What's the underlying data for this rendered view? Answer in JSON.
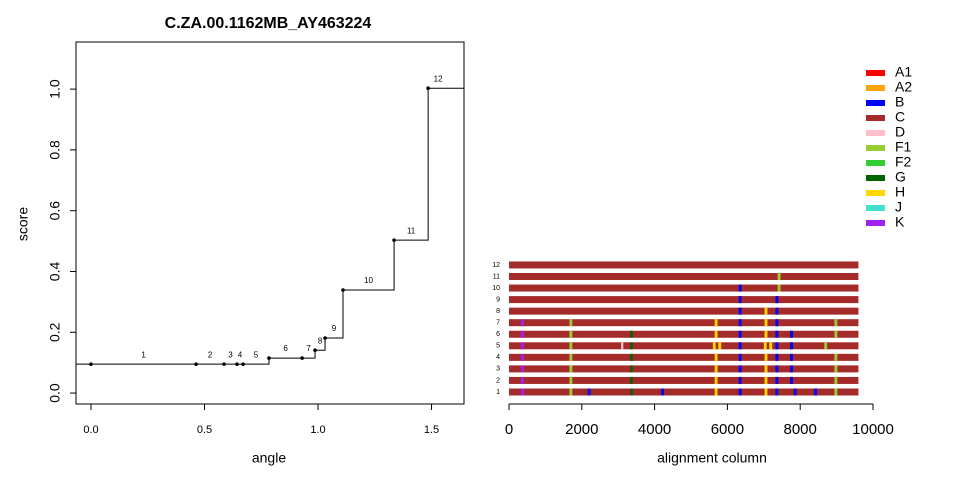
{
  "chart_data": [
    {
      "type": "step",
      "title": "C.ZA.00.1162MB_AY463224",
      "x_label": "angle",
      "y_label": "score",
      "x": [
        0,
        0.463,
        0.586,
        0.643,
        0.67,
        0.784,
        0.93,
        0.987,
        1.031,
        1.11,
        1.335,
        1.485
      ],
      "values": [
        0.095,
        0.095,
        0.095,
        0.095,
        0.095,
        0.115,
        0.115,
        0.141,
        0.181,
        0.339,
        0.503,
        1.003
      ],
      "point_labels": [
        "1",
        "2",
        "3",
        "4",
        "5",
        "6",
        "7",
        "8",
        "9",
        "10",
        "11",
        "12"
      ],
      "color": "#000000",
      "xlim": [
        -0.066,
        1.643
      ],
      "xticks": [
        {
          "value": 0,
          "label": "0.0"
        },
        {
          "value": 0.5,
          "label": "0.5"
        },
        {
          "value": 1,
          "label": "1.0"
        },
        {
          "value": 1.5,
          "label": "1.5"
        }
      ],
      "ylim": [
        -0.036,
        1.155
      ],
      "yticks": [
        {
          "value": 0,
          "label": "0.0"
        },
        0.2,
        0.4,
        0.6,
        0.8,
        {
          "value": 1,
          "label": "1.0"
        }
      ]
    },
    {
      "type": "segments",
      "x_label": "alignment column",
      "xlim": [
        0,
        10000
      ],
      "xticks": [
        0,
        2000,
        4000,
        6000,
        8000,
        10000
      ],
      "legend": [
        {
          "name": "A1",
          "color": "#ff0000"
        },
        {
          "name": "A2",
          "color": "#ffa500"
        },
        {
          "name": "B",
          "color": "#0000ff"
        },
        {
          "name": "C",
          "color": "#a52a2a"
        },
        {
          "name": "D",
          "color": "#ffc0cb"
        },
        {
          "name": "F1",
          "color": "#9acd32"
        },
        {
          "name": "F2",
          "color": "#32cd32"
        },
        {
          "name": "G",
          "color": "#006400"
        },
        {
          "name": "H",
          "color": "#ffd700"
        },
        {
          "name": "J",
          "color": "#40e0d0"
        },
        {
          "name": "K",
          "color": "#a020f0"
        }
      ],
      "rows": [
        {
          "label": "1",
          "segments": [
            {
              "start": 0,
              "end": 9600,
              "subtype": "C"
            },
            {
              "start": 330,
              "end": 410,
              "subtype": "K"
            },
            {
              "start": 1660,
              "end": 1740,
              "subtype": "F1"
            },
            {
              "start": 2160,
              "end": 2240,
              "subtype": "B"
            },
            {
              "start": 3330,
              "end": 3400,
              "subtype": "G"
            },
            {
              "start": 4180,
              "end": 4260,
              "subtype": "B"
            },
            {
              "start": 5650,
              "end": 5730,
              "subtype": "H"
            },
            {
              "start": 6310,
              "end": 6390,
              "subtype": "B"
            },
            {
              "start": 7020,
              "end": 7100,
              "subtype": "H"
            },
            {
              "start": 7320,
              "end": 7400,
              "subtype": "B"
            },
            {
              "start": 7820,
              "end": 7900,
              "subtype": "B"
            },
            {
              "start": 8380,
              "end": 8460,
              "subtype": "B"
            },
            {
              "start": 8940,
              "end": 9020,
              "subtype": "F1"
            }
          ]
        },
        {
          "label": "2",
          "segments": [
            {
              "start": 0,
              "end": 9600,
              "subtype": "C"
            },
            {
              "start": 330,
              "end": 410,
              "subtype": "K"
            },
            {
              "start": 1660,
              "end": 1740,
              "subtype": "F1"
            },
            {
              "start": 3330,
              "end": 3400,
              "subtype": "G"
            },
            {
              "start": 5650,
              "end": 5730,
              "subtype": "H"
            },
            {
              "start": 6310,
              "end": 6390,
              "subtype": "B"
            },
            {
              "start": 7020,
              "end": 7100,
              "subtype": "H"
            },
            {
              "start": 7320,
              "end": 7400,
              "subtype": "B"
            },
            {
              "start": 7720,
              "end": 7800,
              "subtype": "B"
            },
            {
              "start": 8940,
              "end": 9020,
              "subtype": "F1"
            }
          ]
        },
        {
          "label": "3",
          "segments": [
            {
              "start": 0,
              "end": 9600,
              "subtype": "C"
            },
            {
              "start": 330,
              "end": 410,
              "subtype": "K"
            },
            {
              "start": 1660,
              "end": 1740,
              "subtype": "F1"
            },
            {
              "start": 3330,
              "end": 3400,
              "subtype": "G"
            },
            {
              "start": 5650,
              "end": 5730,
              "subtype": "H"
            },
            {
              "start": 6310,
              "end": 6390,
              "subtype": "B"
            },
            {
              "start": 7020,
              "end": 7100,
              "subtype": "H"
            },
            {
              "start": 7320,
              "end": 7400,
              "subtype": "B"
            },
            {
              "start": 7720,
              "end": 7800,
              "subtype": "B"
            },
            {
              "start": 8940,
              "end": 9020,
              "subtype": "F1"
            }
          ]
        },
        {
          "label": "4",
          "segments": [
            {
              "start": 0,
              "end": 9600,
              "subtype": "C"
            },
            {
              "start": 330,
              "end": 410,
              "subtype": "K"
            },
            {
              "start": 1660,
              "end": 1740,
              "subtype": "F1"
            },
            {
              "start": 3330,
              "end": 3400,
              "subtype": "G"
            },
            {
              "start": 5650,
              "end": 5730,
              "subtype": "H"
            },
            {
              "start": 6310,
              "end": 6390,
              "subtype": "B"
            },
            {
              "start": 7020,
              "end": 7100,
              "subtype": "H"
            },
            {
              "start": 7320,
              "end": 7400,
              "subtype": "B"
            },
            {
              "start": 7720,
              "end": 7800,
              "subtype": "B"
            },
            {
              "start": 8940,
              "end": 9020,
              "subtype": "F1"
            }
          ]
        },
        {
          "label": "5",
          "segments": [
            {
              "start": 0,
              "end": 9600,
              "subtype": "C"
            },
            {
              "start": 330,
              "end": 410,
              "subtype": "K"
            },
            {
              "start": 1660,
              "end": 1740,
              "subtype": "F1"
            },
            {
              "start": 3080,
              "end": 3140,
              "subtype": "D"
            },
            {
              "start": 3330,
              "end": 3400,
              "subtype": "G"
            },
            {
              "start": 5600,
              "end": 5680,
              "subtype": "H"
            },
            {
              "start": 5750,
              "end": 5830,
              "subtype": "H"
            },
            {
              "start": 6310,
              "end": 6390,
              "subtype": "B"
            },
            {
              "start": 7000,
              "end": 7080,
              "subtype": "H"
            },
            {
              "start": 7150,
              "end": 7230,
              "subtype": "H"
            },
            {
              "start": 7320,
              "end": 7400,
              "subtype": "B"
            },
            {
              "start": 7720,
              "end": 7800,
              "subtype": "B"
            },
            {
              "start": 8660,
              "end": 8740,
              "subtype": "F1"
            }
          ]
        },
        {
          "label": "6",
          "segments": [
            {
              "start": 0,
              "end": 9600,
              "subtype": "C"
            },
            {
              "start": 330,
              "end": 410,
              "subtype": "K"
            },
            {
              "start": 1660,
              "end": 1740,
              "subtype": "F1"
            },
            {
              "start": 3330,
              "end": 3400,
              "subtype": "G"
            },
            {
              "start": 5650,
              "end": 5730,
              "subtype": "H"
            },
            {
              "start": 6310,
              "end": 6390,
              "subtype": "B"
            },
            {
              "start": 7020,
              "end": 7100,
              "subtype": "H"
            },
            {
              "start": 7320,
              "end": 7400,
              "subtype": "B"
            },
            {
              "start": 7720,
              "end": 7800,
              "subtype": "B"
            },
            {
              "start": 8940,
              "end": 9020,
              "subtype": "F1"
            }
          ]
        },
        {
          "label": "7",
          "segments": [
            {
              "start": 0,
              "end": 9600,
              "subtype": "C"
            },
            {
              "start": 330,
              "end": 410,
              "subtype": "K"
            },
            {
              "start": 1660,
              "end": 1740,
              "subtype": "F1"
            },
            {
              "start": 5650,
              "end": 5730,
              "subtype": "H"
            },
            {
              "start": 6310,
              "end": 6390,
              "subtype": "B"
            },
            {
              "start": 7020,
              "end": 7100,
              "subtype": "H"
            },
            {
              "start": 7320,
              "end": 7400,
              "subtype": "B"
            },
            {
              "start": 8940,
              "end": 9020,
              "subtype": "F1"
            }
          ]
        },
        {
          "label": "8",
          "segments": [
            {
              "start": 0,
              "end": 9600,
              "subtype": "C"
            },
            {
              "start": 6310,
              "end": 6390,
              "subtype": "B"
            },
            {
              "start": 7020,
              "end": 7100,
              "subtype": "H"
            },
            {
              "start": 7320,
              "end": 7400,
              "subtype": "B"
            }
          ]
        },
        {
          "label": "9",
          "segments": [
            {
              "start": 0,
              "end": 9600,
              "subtype": "C"
            },
            {
              "start": 6310,
              "end": 6390,
              "subtype": "B"
            },
            {
              "start": 7320,
              "end": 7400,
              "subtype": "B"
            }
          ]
        },
        {
          "label": "10",
          "segments": [
            {
              "start": 0,
              "end": 9600,
              "subtype": "C"
            },
            {
              "start": 6310,
              "end": 6390,
              "subtype": "B"
            },
            {
              "start": 7380,
              "end": 7460,
              "subtype": "F1"
            }
          ]
        },
        {
          "label": "11",
          "segments": [
            {
              "start": 0,
              "end": 9600,
              "subtype": "C"
            },
            {
              "start": 7380,
              "end": 7460,
              "subtype": "F1"
            }
          ]
        },
        {
          "label": "12",
          "segments": [
            {
              "start": 0,
              "end": 9600,
              "subtype": "C"
            }
          ]
        }
      ]
    }
  ]
}
